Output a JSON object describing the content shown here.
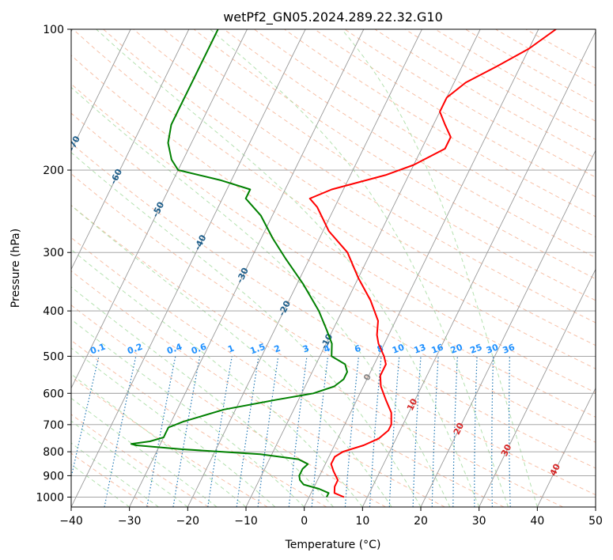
{
  "chart_data": {
    "type": "line",
    "title": "wetPf2_GN05.2024.289.22.32.G10",
    "xlabel": "Temperature (°C)",
    "ylabel": "Pressure (hPa)",
    "xlim": [
      -40,
      50
    ],
    "ylim": [
      1050,
      100
    ],
    "yscale": "log",
    "skew": true,
    "grid": true,
    "x_ticks": [
      -40,
      -30,
      -20,
      -10,
      0,
      10,
      20,
      30,
      40,
      50
    ],
    "x_tick_labels": [
      "−40",
      "−30",
      "−20",
      "−10",
      "0",
      "10",
      "20",
      "30",
      "40",
      "50"
    ],
    "y_ticks": [
      100,
      200,
      300,
      400,
      500,
      600,
      700,
      800,
      900,
      1000
    ],
    "y_tick_labels": [
      "100",
      "200",
      "300",
      "400",
      "500",
      "600",
      "700",
      "800",
      "900",
      "1000"
    ],
    "series": [
      {
        "color": "#ff0000",
        "points": [
          [
            6.0,
            1000
          ],
          [
            4.0,
            980
          ],
          [
            3.5,
            950
          ],
          [
            3.5,
            920
          ],
          [
            2.0,
            880
          ],
          [
            1.0,
            850
          ],
          [
            1.0,
            820
          ],
          [
            2.0,
            800
          ],
          [
            5.0,
            775
          ],
          [
            7.0,
            750
          ],
          [
            8.0,
            720
          ],
          [
            8.0,
            700
          ],
          [
            7.0,
            660
          ],
          [
            5.0,
            620
          ],
          [
            3.0,
            580
          ],
          [
            2.0,
            550
          ],
          [
            2.0,
            520
          ],
          [
            1.0,
            500
          ],
          [
            -1.0,
            470
          ],
          [
            -2.0,
            450
          ],
          [
            -3.0,
            420
          ],
          [
            -6.0,
            380
          ],
          [
            -10.0,
            340
          ],
          [
            -14.0,
            300
          ],
          [
            -19.0,
            270
          ],
          [
            -23.0,
            240
          ],
          [
            -25.0,
            230
          ],
          [
            -22.0,
            220
          ],
          [
            -14.0,
            205
          ],
          [
            -10.0,
            195
          ],
          [
            -6.0,
            180
          ],
          [
            -6.0,
            170
          ],
          [
            -8.0,
            160
          ],
          [
            -10.0,
            150
          ],
          [
            -10.0,
            140
          ],
          [
            -8.0,
            130
          ],
          [
            -4.0,
            120
          ],
          [
            0.0,
            110
          ],
          [
            3.0,
            100
          ]
        ]
      },
      {
        "color": "#008000",
        "points": [
          [
            3.0,
            1000
          ],
          [
            3.0,
            980
          ],
          [
            1.0,
            960
          ],
          [
            -2.0,
            940
          ],
          [
            -3.0,
            920
          ],
          [
            -3.5,
            900
          ],
          [
            -3.5,
            870
          ],
          [
            -3.0,
            850
          ],
          [
            -5.0,
            830
          ],
          [
            -12.0,
            810
          ],
          [
            -26.0,
            790
          ],
          [
            -34.0,
            775
          ],
          [
            -35.0,
            770
          ],
          [
            -32.0,
            760
          ],
          [
            -30.0,
            745
          ],
          [
            -30.0,
            730
          ],
          [
            -30.0,
            710
          ],
          [
            -28.0,
            690
          ],
          [
            -22.0,
            650
          ],
          [
            -14.0,
            620
          ],
          [
            -8.0,
            600
          ],
          [
            -5.0,
            580
          ],
          [
            -4.0,
            560
          ],
          [
            -4.0,
            540
          ],
          [
            -5.0,
            520
          ],
          [
            -8.0,
            500
          ],
          [
            -9.0,
            470
          ],
          [
            -11.0,
            440
          ],
          [
            -14.0,
            400
          ],
          [
            -19.0,
            350
          ],
          [
            -24.0,
            310
          ],
          [
            -28.0,
            280
          ],
          [
            -32.0,
            250
          ],
          [
            -36.0,
            230
          ],
          [
            -36.0,
            220
          ],
          [
            -42.0,
            210
          ],
          [
            -50.0,
            200
          ],
          [
            -52.0,
            190
          ],
          [
            -54.0,
            175
          ],
          [
            -55.0,
            160
          ],
          [
            -55.0,
            145
          ],
          [
            -55.0,
            130
          ],
          [
            -55.0,
            115
          ],
          [
            -55.0,
            100
          ]
        ]
      }
    ],
    "isotherms": [
      -100,
      -90,
      -80,
      -70,
      -60,
      -50,
      -40,
      -30,
      -20,
      -10,
      0,
      10,
      20,
      30,
      40
    ],
    "mixing_ratio_labels": [
      "0.1",
      "0.2",
      "0.4",
      "0.6",
      "1",
      "1.5",
      "2",
      "3",
      "4",
      "6",
      "8",
      "10",
      "13",
      "16",
      "20",
      "25",
      "30",
      "36"
    ],
    "mixing_ratios": [
      0.1,
      0.2,
      0.4,
      0.6,
      1,
      1.5,
      2,
      3,
      4,
      6,
      8,
      10,
      13,
      16,
      20,
      25,
      30,
      36
    ],
    "colors": {
      "temperature": "#ff0000",
      "dewpoint": "#008000",
      "isotherm": "#999999",
      "isobar": "#999999",
      "dry_adiabat": "#f4a582",
      "moist_adiabat": "#a1d99b",
      "mixing_ratio": "#1f77b4",
      "isotherm_label_blue": "#1f5f8b",
      "isotherm_label_red": "#d62728",
      "mixing_label": "#1e90ff"
    }
  }
}
